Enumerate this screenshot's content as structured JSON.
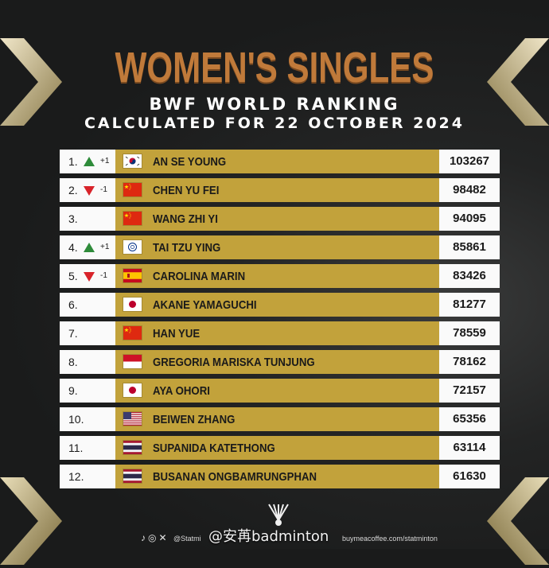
{
  "header": {
    "title": "WOMEN'S SINGLES",
    "subtitle": "BWF WORLD RANKING",
    "date_line": "CALCULATED FOR 22 OCTOBER 2024"
  },
  "rankings": [
    {
      "rank": "1.",
      "move": "up",
      "move_value": "+1",
      "country": "KOR",
      "name": "AN SE YOUNG",
      "points": "103267"
    },
    {
      "rank": "2.",
      "move": "down",
      "move_value": "-1",
      "country": "CHN",
      "name": "CHEN YU FEI",
      "points": "98482"
    },
    {
      "rank": "3.",
      "move": "none",
      "move_value": "",
      "country": "CHN",
      "name": "WANG ZHI YI",
      "points": "94095"
    },
    {
      "rank": "4.",
      "move": "up",
      "move_value": "+1",
      "country": "TPE",
      "name": "TAI TZU YING",
      "points": "85861"
    },
    {
      "rank": "5.",
      "move": "down",
      "move_value": "-1",
      "country": "ESP",
      "name": "CAROLINA MARIN",
      "points": "83426"
    },
    {
      "rank": "6.",
      "move": "none",
      "move_value": "",
      "country": "JPN",
      "name": "AKANE YAMAGUCHI",
      "points": "81277"
    },
    {
      "rank": "7.",
      "move": "none",
      "move_value": "",
      "country": "CHN",
      "name": "HAN YUE",
      "points": "78559"
    },
    {
      "rank": "8.",
      "move": "none",
      "move_value": "",
      "country": "INA",
      "name": "GREGORIA MARISKA TUNJUNG",
      "points": "78162"
    },
    {
      "rank": "9.",
      "move": "none",
      "move_value": "",
      "country": "JPN",
      "name": "AYA OHORI",
      "points": "72157"
    },
    {
      "rank": "10.",
      "move": "none",
      "move_value": "",
      "country": "USA",
      "name": "BEIWEN ZHANG",
      "points": "65356"
    },
    {
      "rank": "11.",
      "move": "none",
      "move_value": "",
      "country": "THA",
      "name": "SUPANIDA KATETHONG",
      "points": "63114"
    },
    {
      "rank": "12.",
      "move": "none",
      "move_value": "",
      "country": "THA",
      "name": "BUSANAN ONGBAMRUNGPHAN",
      "points": "61630"
    }
  ],
  "footer": {
    "social_handle": "@Statmi",
    "watermark": "@安苒badminton",
    "website": "buymeacoffee.com/statminton"
  },
  "colors": {
    "background": "#1a1b1b",
    "title": "#c07a3a",
    "row_gold": "#c2a23b",
    "cell_white": "#fafafa",
    "up_green": "#2e8b3a",
    "down_red": "#d8232a"
  }
}
